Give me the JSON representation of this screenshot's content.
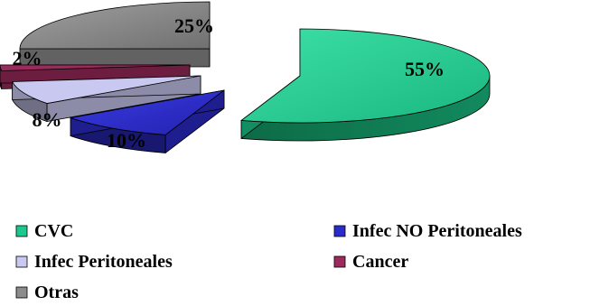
{
  "chart_data": {
    "type": "pie",
    "title": "",
    "three_d": true,
    "exploded": true,
    "labels": [
      "CVC",
      "Infec NO Peritoneales",
      "Infec Peritoneales",
      "Cancer",
      "Otras"
    ],
    "values": [
      55,
      10,
      8,
      2,
      25
    ],
    "data_labels": [
      "55%",
      "10%",
      "8%",
      "2%",
      "25%"
    ],
    "colors": {
      "CVC": "#1bc98e",
      "Infec NO Peritoneales": "#2b2bcc",
      "Infec Peritoneales": "#c8c8f0",
      "Cancer": "#9c2a5c",
      "Otras": "#8c8c8c"
    },
    "legend_placement": "bottom",
    "legend_order": [
      "CVC",
      "Infec NO Peritoneales",
      "Infec Peritoneales",
      "Cancer",
      "Otras"
    ]
  }
}
